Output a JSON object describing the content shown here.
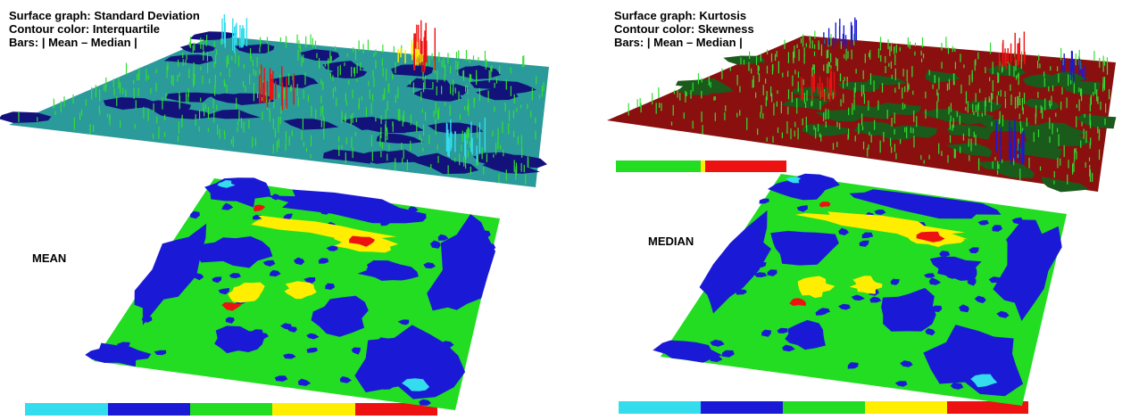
{
  "panels": [
    {
      "lines": [
        "Surface graph: Standard Deviation",
        "Contour color: Interquartile",
        "Bars:  | Mean – Median |"
      ],
      "label": "MEAN"
    },
    {
      "lines": [
        "Surface graph: Kurtosis",
        "Contour color: Skewness",
        "Bars:  | Mean – Median |"
      ],
      "label": "MEDIAN"
    }
  ]
}
